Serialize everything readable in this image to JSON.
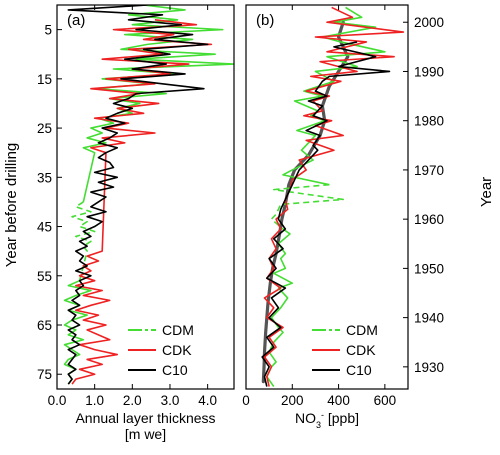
{
  "labels": {
    "left_ylabel": "Year before drilling",
    "right_ylabel": "Year"
  },
  "chart_data": [
    {
      "type": "line",
      "panel_label": "(a)",
      "xlabel_line1": "Annual layer thickness",
      "xlabel_line2": "[m we]",
      "xlim": [
        0,
        4.7
      ],
      "ylim": [
        0,
        78
      ],
      "y_inverted": true,
      "xticks": [
        0.0,
        1.0,
        2.0,
        3.0,
        4.0
      ],
      "xtick_labels": [
        "0.0",
        "1.0",
        "2.0",
        "3.0",
        "4.0"
      ],
      "yticks": [
        5,
        15,
        25,
        35,
        45,
        55,
        65,
        75
      ],
      "ytick_labels": [
        "5",
        "15",
        "25",
        "35",
        "45",
        "55",
        "65",
        "75"
      ],
      "legend_position": "bottom-right",
      "series": [
        {
          "name": "CDM",
          "color": "#44dd33",
          "dashed_segment": [
            40,
            50
          ],
          "y": [
            0,
            1,
            2,
            3,
            4,
            5,
            6,
            7,
            8,
            9,
            10,
            11,
            12,
            13,
            14,
            15,
            16,
            17,
            18,
            19,
            20,
            21,
            22,
            23,
            24,
            25,
            26,
            27,
            28,
            29,
            30,
            40,
            41,
            42,
            43,
            44,
            45,
            46,
            47,
            48,
            49,
            50,
            56,
            57,
            58,
            59,
            60,
            61,
            62,
            63,
            64,
            65,
            66,
            67,
            68,
            69,
            70,
            71,
            72,
            73,
            74,
            75,
            76,
            77
          ],
          "x": [
            2.3,
            3.4,
            1.9,
            3.2,
            2.0,
            4.4,
            1.8,
            3.6,
            2.4,
            1.7,
            4.2,
            2.1,
            4.7,
            1.5,
            3.2,
            1.2,
            2.5,
            1.0,
            2.9,
            1.4,
            2.2,
            1.6,
            2.0,
            1.1,
            1.5,
            0.9,
            1.2,
            0.8,
            1.3,
            0.7,
            1.0,
            0.7,
            0.5,
            0.9,
            0.4,
            0.8,
            0.6,
            1.0,
            0.5,
            0.9,
            0.7,
            0.8,
            0.6,
            0.3,
            0.9,
            0.5,
            0.2,
            0.6,
            0.3,
            0.8,
            0.4,
            0.2,
            0.5,
            0.3,
            0.7,
            0.2,
            0.4,
            0.6,
            0.3,
            0.2,
            0.5,
            0.3,
            0.4,
            0.3
          ]
        },
        {
          "name": "CDK",
          "color": "#ee2222",
          "y": [
            3,
            4,
            5,
            6,
            7,
            8,
            9,
            10,
            11,
            12,
            13,
            14,
            15,
            16,
            17,
            18,
            19,
            20,
            21,
            22,
            23,
            24,
            25,
            26,
            27,
            28,
            29,
            30,
            50,
            51,
            52,
            53,
            54,
            55,
            56,
            57,
            58,
            59,
            60,
            61,
            62,
            63,
            64,
            65,
            66,
            67,
            68,
            69,
            70,
            71,
            72,
            73,
            74,
            75,
            76,
            77
          ],
          "x": [
            2.6,
            3.7,
            1.5,
            3.1,
            2.3,
            4.1,
            1.9,
            2.8,
            1.2,
            3.5,
            2.0,
            3.0,
            1.3,
            2.6,
            0.9,
            2.2,
            1.4,
            2.7,
            1.6,
            2.3,
            1.0,
            1.9,
            1.3,
            2.6,
            1.2,
            1.8,
            0.9,
            1.3,
            1.2,
            0.8,
            1.1,
            0.7,
            0.9,
            0.6,
            1.0,
            0.5,
            1.2,
            0.7,
            1.4,
            0.9,
            0.5,
            1.1,
            0.7,
            1.3,
            0.8,
            1.1,
            1.4,
            0.6,
            1.0,
            1.6,
            0.8,
            1.2,
            0.6,
            1.0,
            0.5,
            0.4
          ]
        },
        {
          "name": "C10",
          "color": "#000000",
          "y": [
            0,
            1,
            2,
            3,
            4,
            5,
            6,
            7,
            8,
            9,
            10,
            11,
            12,
            13,
            14,
            15,
            16,
            17,
            18,
            19,
            20,
            21,
            22,
            23,
            24,
            25,
            26,
            27,
            28,
            29,
            30,
            31,
            32,
            33,
            34,
            35,
            36,
            37,
            38,
            39,
            40,
            41,
            42,
            43,
            44,
            45,
            46,
            47,
            48,
            49,
            50,
            51,
            52,
            53,
            54,
            55,
            56,
            57,
            58,
            59,
            60,
            61,
            62,
            63,
            64,
            65,
            66,
            67,
            68,
            69,
            70,
            71,
            72,
            73,
            74,
            75,
            76,
            77
          ],
          "x": [
            2.4,
            0.3,
            2.8,
            1.9,
            3.3,
            2.1,
            3.6,
            2.6,
            4.0,
            2.3,
            3.0,
            1.8,
            2.9,
            2.0,
            3.4,
            1.7,
            2.8,
            3.9,
            2.1,
            1.9,
            1.5,
            2.0,
            1.6,
            1.3,
            1.8,
            1.2,
            1.6,
            1.4,
            1.1,
            1.6,
            1.3,
            1.1,
            1.4,
            1.5,
            1.0,
            1.6,
            1.1,
            1.5,
            0.9,
            1.3,
            1.1,
            0.9,
            1.3,
            0.8,
            1.2,
            1.0,
            0.7,
            0.9,
            0.6,
            0.8,
            0.5,
            0.7,
            0.6,
            0.8,
            0.5,
            0.9,
            0.6,
            0.7,
            0.5,
            0.6,
            0.4,
            0.6,
            0.3,
            0.5,
            0.4,
            0.6,
            0.3,
            0.5,
            0.4,
            0.6,
            0.3,
            0.5,
            0.4,
            0.3,
            0.5,
            0.3,
            0.4,
            0.3
          ]
        }
      ]
    },
    {
      "type": "line",
      "panel_label": "(b)",
      "xlabel_base": "NO",
      "xlabel_sub": "3",
      "xlabel_sup": "-",
      "xlabel_unit": " [ppb]",
      "xlim": [
        0,
        700
      ],
      "ylim": [
        1925.5,
        2003.5
      ],
      "y_inverted": false,
      "xticks": [
        0,
        200,
        400,
        600
      ],
      "xtick_labels": [
        "0",
        "200",
        "400",
        "600"
      ],
      "yticks": [
        2000,
        1990,
        1980,
        1970,
        1960,
        1950,
        1940,
        1930
      ],
      "ytick_labels": [
        "2000",
        "1990",
        "1980",
        "1970",
        "1960",
        "1950",
        "1940",
        "1930"
      ],
      "legend_position": "bottom-right",
      "smooth": {
        "color": "#555555",
        "year": [
          2000,
          1997,
          1993,
          1990,
          1987,
          1983,
          1980,
          1977,
          1973,
          1970,
          1967,
          1963,
          1960,
          1957,
          1953,
          1950,
          1947,
          1943,
          1940,
          1937,
          1933,
          1930,
          1927
        ],
        "x": [
          420,
          400,
          440,
          400,
          360,
          330,
          340,
          320,
          270,
          210,
          185,
          170,
          155,
          145,
          130,
          115,
          105,
          95,
          90,
          85,
          80,
          78,
          75
        ]
      },
      "series": [
        {
          "name": "CDM",
          "color": "#44dd33",
          "dashed_segment": [
            1960,
            1967
          ],
          "year": [
            2003,
            2001,
            2000,
            1999,
            1997,
            1996,
            1994,
            1993,
            1991,
            1990,
            1988,
            1986,
            1985,
            1984,
            1982,
            1981,
            1980,
            1978,
            1977,
            1975,
            1974,
            1972,
            1970,
            1969,
            1967,
            1966,
            1964,
            1963,
            1961,
            1960,
            1958,
            1957,
            1955,
            1953,
            1952,
            1950,
            1949,
            1947,
            1946,
            1944,
            1942,
            1940,
            1938,
            1937,
            1935,
            1933,
            1931,
            1930,
            1928,
            1926
          ],
          "x": [
            430,
            500,
            380,
            560,
            330,
            410,
            600,
            350,
            480,
            300,
            380,
            250,
            330,
            210,
            310,
            280,
            340,
            220,
            300,
            260,
            240,
            290,
            200,
            160,
            360,
            120,
            420,
            150,
            130,
            110,
            160,
            190,
            140,
            170,
            150,
            170,
            120,
            200,
            140,
            180,
            150,
            110,
            140,
            160,
            120,
            100,
            130,
            110,
            90,
            120
          ]
        },
        {
          "name": "CDK",
          "color": "#ee2222",
          "year": [
            2003,
            2001,
            2000,
            1998,
            1997,
            1996,
            1994,
            1993,
            1992,
            1990,
            1989,
            1988,
            1986,
            1985,
            1984,
            1982,
            1981,
            1980,
            1979,
            1977,
            1976,
            1974,
            1972,
            1970,
            1968,
            1966,
            1964,
            1962,
            1960,
            1958,
            1956,
            1954,
            1952,
            1950,
            1948,
            1946,
            1944,
            1942,
            1940,
            1938,
            1936,
            1934,
            1932,
            1930,
            1928,
            1926
          ],
          "x": [
            370,
            460,
            350,
            680,
            300,
            520,
            350,
            640,
            320,
            480,
            280,
            410,
            260,
            360,
            290,
            330,
            250,
            370,
            300,
            420,
            260,
            380,
            230,
            260,
            200,
            190,
            170,
            180,
            130,
            150,
            110,
            130,
            100,
            120,
            90,
            150,
            80,
            120,
            90,
            160,
            100,
            130,
            80,
            110,
            90,
            100
          ]
        },
        {
          "name": "C10",
          "color": "#000000",
          "year": [
            1996,
            1995,
            1993,
            1991,
            1990,
            1989,
            1988,
            1986,
            1985,
            1984,
            1983,
            1981,
            1980,
            1978,
            1977,
            1975,
            1974,
            1972,
            1970,
            1968,
            1966,
            1964,
            1962,
            1960,
            1958,
            1956,
            1954,
            1952,
            1950,
            1948,
            1946,
            1944,
            1942,
            1940,
            1938,
            1936,
            1934,
            1932,
            1930,
            1928,
            1926
          ],
          "x": [
            480,
            380,
            560,
            400,
            620,
            360,
            330,
            300,
            350,
            270,
            330,
            290,
            350,
            260,
            320,
            290,
            310,
            270,
            230,
            210,
            190,
            170,
            150,
            140,
            170,
            120,
            160,
            100,
            130,
            90,
            170,
            110,
            140,
            100,
            150,
            90,
            120,
            70,
            100,
            80,
            90
          ]
        }
      ]
    }
  ]
}
